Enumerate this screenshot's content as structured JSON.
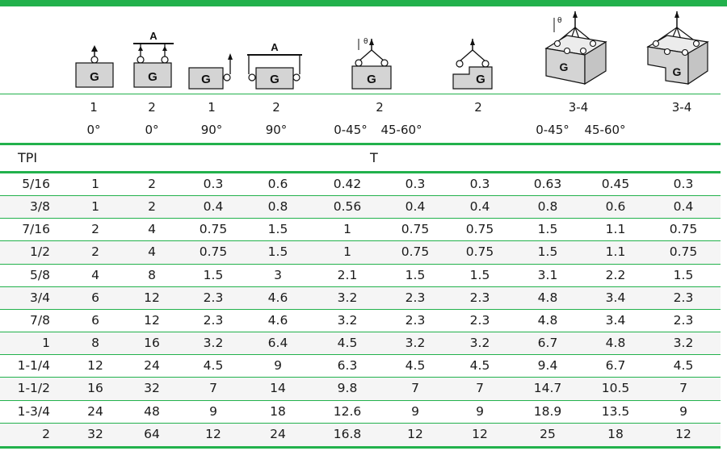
{
  "config_legs": [
    "1",
    "2",
    "1",
    "2",
    "2",
    "2",
    "3-4",
    "3-4"
  ],
  "angles": [
    "0°",
    "0°",
    "90°",
    "90°",
    "0-45°",
    "45-60°",
    "0-45°",
    "45-60°"
  ],
  "icon_labels": {
    "box": "G",
    "beam": "A",
    "theta": "θ"
  },
  "unit_row": {
    "tpi_label": "TPI",
    "load_label": "T"
  },
  "rows": [
    {
      "tpi": "5/16",
      "values": [
        "1",
        "2",
        "0.3",
        "0.6",
        "0.42",
        "0.3",
        "0.3",
        "0.63",
        "0.45",
        "0.3"
      ]
    },
    {
      "tpi": "3/8",
      "values": [
        "1",
        "2",
        "0.4",
        "0.8",
        "0.56",
        "0.4",
        "0.4",
        "0.8",
        "0.6",
        "0.4"
      ]
    },
    {
      "tpi": "7/16",
      "values": [
        "2",
        "4",
        "0.75",
        "1.5",
        "1",
        "0.75",
        "0.75",
        "1.5",
        "1.1",
        "0.75"
      ]
    },
    {
      "tpi": "1/2",
      "values": [
        "2",
        "4",
        "0.75",
        "1.5",
        "1",
        "0.75",
        "0.75",
        "1.5",
        "1.1",
        "0.75"
      ]
    },
    {
      "tpi": "5/8",
      "values": [
        "4",
        "8",
        "1.5",
        "3",
        "2.1",
        "1.5",
        "1.5",
        "3.1",
        "2.2",
        "1.5"
      ]
    },
    {
      "tpi": "3/4",
      "values": [
        "6",
        "12",
        "2.3",
        "4.6",
        "3.2",
        "2.3",
        "2.3",
        "4.8",
        "3.4",
        "2.3"
      ]
    },
    {
      "tpi": "7/8",
      "values": [
        "6",
        "12",
        "2.3",
        "4.6",
        "3.2",
        "2.3",
        "2.3",
        "4.8",
        "3.4",
        "2.3"
      ]
    },
    {
      "tpi": "1",
      "values": [
        "8",
        "16",
        "3.2",
        "6.4",
        "4.5",
        "3.2",
        "3.2",
        "6.7",
        "4.8",
        "3.2"
      ]
    },
    {
      "tpi": "1-1/4",
      "values": [
        "12",
        "24",
        "4.5",
        "9",
        "6.3",
        "4.5",
        "4.5",
        "9.4",
        "6.7",
        "4.5"
      ]
    },
    {
      "tpi": "1-1/2",
      "values": [
        "16",
        "32",
        "7",
        "14",
        "9.8",
        "7",
        "7",
        "14.7",
        "10.5",
        "7"
      ]
    },
    {
      "tpi": "1-3/4",
      "values": [
        "24",
        "48",
        "9",
        "18",
        "12.6",
        "9",
        "9",
        "18.9",
        "13.5",
        "9"
      ]
    },
    {
      "tpi": "2",
      "values": [
        "32",
        "64",
        "12",
        "24",
        "16.8",
        "12",
        "12",
        "25",
        "18",
        "12"
      ]
    }
  ],
  "colors": {
    "accent": "#22b14c",
    "row_alt": "#f5f5f5",
    "icon_fill": "#d4d4d4"
  }
}
